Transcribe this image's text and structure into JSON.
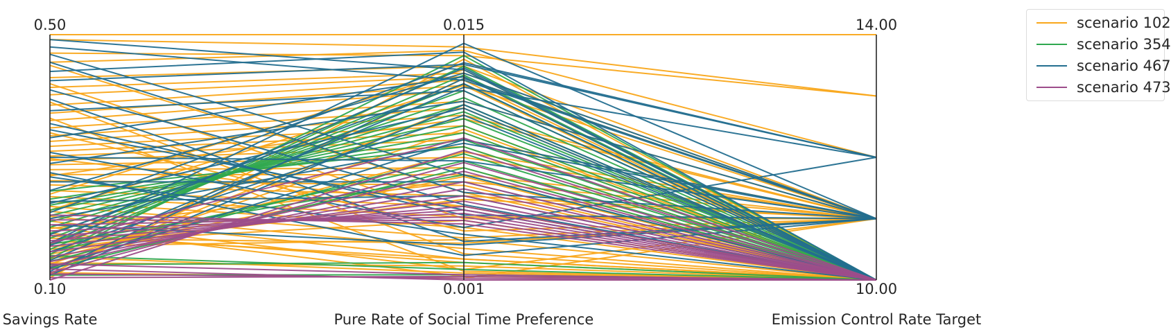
{
  "chart_data": {
    "type": "parallel_coordinates",
    "axes": [
      {
        "label": "Savings Rate",
        "min": 0.1,
        "max": 0.5,
        "min_label": "0.10",
        "max_label": "0.50"
      },
      {
        "label": "Pure Rate of Social Time Preference",
        "min": 0.001,
        "max": 0.015,
        "min_label": "0.001",
        "max_label": "0.015"
      },
      {
        "label": "Emission Control Rate Target",
        "min": 10.0,
        "max": 14.0,
        "min_label": "10.00",
        "max_label": "14.00"
      }
    ],
    "legend_placement": "upper-right-outside",
    "grid": false,
    "series": [
      {
        "name": "scenario 102",
        "color": "#F9A71A",
        "lines": [
          [
            0.5,
            0.015,
            14.0
          ],
          [
            0.492,
            0.0143,
            13.0
          ],
          [
            0.47,
            0.0138,
            13.0
          ],
          [
            0.455,
            0.0141,
            12.0
          ],
          [
            0.43,
            0.0132,
            11.0
          ],
          [
            0.414,
            0.0128,
            11.0
          ],
          [
            0.402,
            0.0126,
            10.0
          ],
          [
            0.385,
            0.0124,
            10.0
          ],
          [
            0.372,
            0.0121,
            11.0
          ],
          [
            0.36,
            0.0118,
            10.0
          ],
          [
            0.348,
            0.0112,
            11.0
          ],
          [
            0.335,
            0.0108,
            10.0
          ],
          [
            0.326,
            0.0104,
            11.0
          ],
          [
            0.318,
            0.0098,
            10.0
          ],
          [
            0.31,
            0.0094,
            10.0
          ],
          [
            0.302,
            0.009,
            11.0
          ],
          [
            0.295,
            0.0086,
            10.0
          ],
          [
            0.288,
            0.008,
            11.0
          ],
          [
            0.28,
            0.0074,
            10.0
          ],
          [
            0.272,
            0.007,
            11.0
          ],
          [
            0.262,
            0.0064,
            10.0
          ],
          [
            0.255,
            0.0058,
            11.0
          ],
          [
            0.246,
            0.0052,
            10.0
          ],
          [
            0.236,
            0.0046,
            11.0
          ],
          [
            0.228,
            0.004,
            10.0
          ],
          [
            0.22,
            0.0034,
            11.0
          ],
          [
            0.212,
            0.0028,
            10.0
          ],
          [
            0.204,
            0.0022,
            10.0
          ],
          [
            0.196,
            0.0016,
            11.0
          ],
          [
            0.186,
            0.0012,
            10.0
          ],
          [
            0.176,
            0.002,
            10.0
          ],
          [
            0.168,
            0.0031,
            11.0
          ],
          [
            0.16,
            0.0044,
            10.0
          ],
          [
            0.15,
            0.0056,
            11.0
          ],
          [
            0.142,
            0.0069,
            10.0
          ],
          [
            0.134,
            0.0083,
            11.0
          ],
          [
            0.126,
            0.0096,
            10.0
          ],
          [
            0.118,
            0.011,
            10.0
          ],
          [
            0.11,
            0.0125,
            11.0
          ],
          [
            0.104,
            0.0136,
            10.0
          ],
          [
            0.45,
            0.006,
            10.0
          ],
          [
            0.42,
            0.0045,
            11.0
          ],
          [
            0.39,
            0.0025,
            10.0
          ],
          [
            0.364,
            0.0015,
            10.0
          ],
          [
            0.34,
            0.0038,
            11.0
          ],
          [
            0.298,
            0.0052,
            10.0
          ],
          [
            0.27,
            0.0102,
            11.0
          ],
          [
            0.24,
            0.013,
            10.0
          ],
          [
            0.214,
            0.0121,
            10.0
          ],
          [
            0.184,
            0.0066,
            11.0
          ],
          [
            0.155,
            0.0033,
            10.0
          ],
          [
            0.128,
            0.0018,
            10.0
          ],
          [
            0.112,
            0.0011,
            11.0
          ],
          [
            0.138,
            0.0014,
            10.0
          ],
          [
            0.172,
            0.0022,
            10.0
          ]
        ]
      },
      {
        "name": "scenario 354",
        "color": "#2FA84F",
        "lines": [
          [
            0.135,
            0.0138,
            10.0
          ],
          [
            0.142,
            0.0132,
            10.0
          ],
          [
            0.15,
            0.0127,
            10.0
          ],
          [
            0.16,
            0.0122,
            10.0
          ],
          [
            0.168,
            0.0118,
            10.0
          ],
          [
            0.176,
            0.0114,
            10.0
          ],
          [
            0.186,
            0.011,
            10.0
          ],
          [
            0.195,
            0.0106,
            10.0
          ],
          [
            0.205,
            0.0102,
            10.0
          ],
          [
            0.214,
            0.0098,
            10.0
          ],
          [
            0.222,
            0.0094,
            10.0
          ],
          [
            0.232,
            0.009,
            10.0
          ],
          [
            0.245,
            0.0086,
            10.0
          ],
          [
            0.13,
            0.0082,
            10.0
          ],
          [
            0.146,
            0.0078,
            10.0
          ],
          [
            0.118,
            0.0074,
            10.0
          ],
          [
            0.158,
            0.007,
            10.0
          ],
          [
            0.125,
            0.002,
            10.0
          ],
          [
            0.14,
            0.0016,
            10.0
          ],
          [
            0.108,
            0.0013,
            10.0
          ]
        ]
      },
      {
        "name": "scenario 467",
        "color": "#236E8F",
        "lines": [
          [
            0.492,
            0.013,
            10.0
          ],
          [
            0.48,
            0.0124,
            11.0
          ],
          [
            0.468,
            0.007,
            10.0
          ],
          [
            0.455,
            0.006,
            11.0
          ],
          [
            0.44,
            0.014,
            10.0
          ],
          [
            0.425,
            0.0133,
            12.0
          ],
          [
            0.41,
            0.0053,
            10.0
          ],
          [
            0.395,
            0.0032,
            11.0
          ],
          [
            0.376,
            0.0118,
            10.0
          ],
          [
            0.355,
            0.0047,
            11.0
          ],
          [
            0.332,
            0.0126,
            10.0
          ],
          [
            0.308,
            0.004,
            12.0
          ],
          [
            0.29,
            0.0112,
            11.0
          ],
          [
            0.268,
            0.0036,
            10.0
          ],
          [
            0.246,
            0.0128,
            11.0
          ],
          [
            0.228,
            0.0058,
            10.0
          ],
          [
            0.21,
            0.0134,
            12.0
          ],
          [
            0.19,
            0.003,
            11.0
          ],
          [
            0.174,
            0.0122,
            10.0
          ],
          [
            0.16,
            0.0145,
            11.0
          ],
          [
            0.146,
            0.0104,
            10.0
          ],
          [
            0.132,
            0.012,
            12.0
          ],
          [
            0.12,
            0.009,
            11.0
          ],
          [
            0.108,
            0.011,
            10.0
          ],
          [
            0.3,
            0.0078,
            11.0
          ],
          [
            0.26,
            0.0066,
            10.0
          ],
          [
            0.2,
            0.0088,
            11.0
          ],
          [
            0.156,
            0.0131,
            10.0
          ],
          [
            0.114,
            0.0125,
            11.0
          ],
          [
            0.345,
            0.005,
            10.0
          ],
          [
            0.275,
            0.0024,
            11.0
          ],
          [
            0.225,
            0.0108,
            10.0
          ]
        ]
      },
      {
        "name": "scenario 473",
        "color": "#9D4D8A",
        "lines": [
          [
            0.1,
            0.0084,
            10.0
          ],
          [
            0.112,
            0.0077,
            10.0
          ],
          [
            0.122,
            0.0072,
            10.0
          ],
          [
            0.13,
            0.0066,
            10.0
          ],
          [
            0.138,
            0.0062,
            10.0
          ],
          [
            0.146,
            0.0058,
            10.0
          ],
          [
            0.155,
            0.0055,
            10.0
          ],
          [
            0.164,
            0.0052,
            10.0
          ],
          [
            0.172,
            0.005,
            10.0
          ],
          [
            0.18,
            0.0048,
            10.0
          ],
          [
            0.19,
            0.0046,
            10.0
          ],
          [
            0.198,
            0.0044,
            10.0
          ],
          [
            0.206,
            0.0042,
            10.0
          ],
          [
            0.104,
            0.0012,
            10.0
          ],
          [
            0.11,
            0.0011,
            10.0
          ],
          [
            0.118,
            0.001,
            10.0
          ],
          [
            0.126,
            0.0013,
            10.0
          ],
          [
            0.16,
            0.0091,
            10.0
          ]
        ]
      }
    ]
  }
}
